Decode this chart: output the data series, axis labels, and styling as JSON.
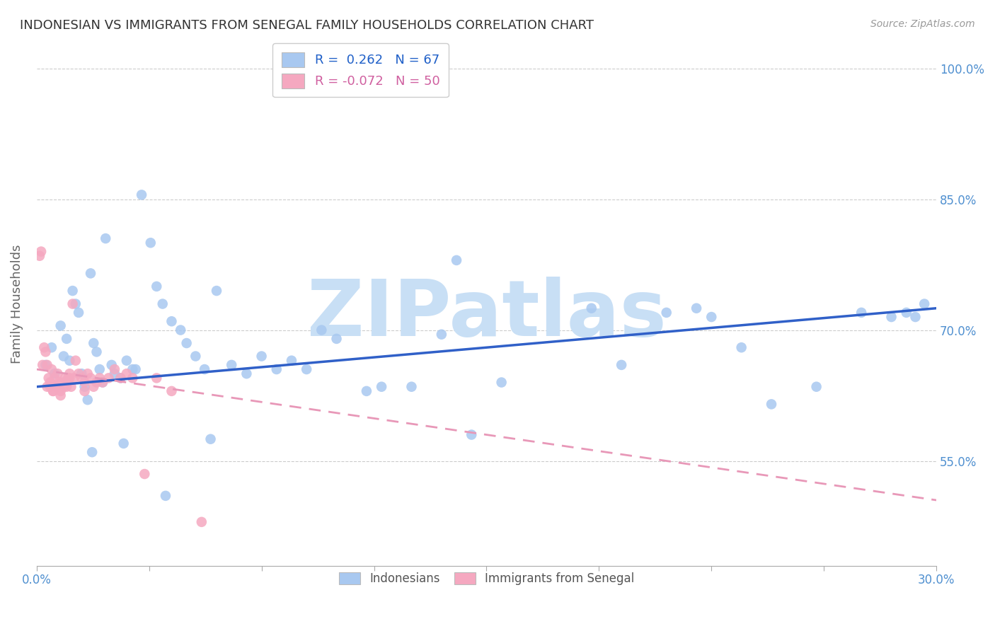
{
  "title": "INDONESIAN VS IMMIGRANTS FROM SENEGAL FAMILY HOUSEHOLDS CORRELATION CHART",
  "source": "Source: ZipAtlas.com",
  "ylabel": "Family Households",
  "xlim": [
    0.0,
    30.0
  ],
  "ylim": [
    43.0,
    103.0
  ],
  "yticks": [
    55.0,
    70.0,
    85.0,
    100.0
  ],
  "xticks": [
    0.0,
    3.75,
    7.5,
    11.25,
    15.0,
    18.75,
    22.5,
    26.25,
    30.0
  ],
  "blue_R": 0.262,
  "blue_N": 67,
  "pink_R": -0.072,
  "pink_N": 50,
  "blue_color": "#A8C8F0",
  "pink_color": "#F5A8C0",
  "blue_line_color": "#3060C8",
  "pink_line_color": "#E898B8",
  "watermark": "ZIPatlas",
  "watermark_color": "#C8DFF5",
  "legend_label_blue": "Indonesians",
  "legend_label_pink": "Immigrants from Senegal",
  "blue_trend_x0": 0.0,
  "blue_trend_y0": 63.5,
  "blue_trend_x1": 30.0,
  "blue_trend_y1": 72.5,
  "pink_trend_x0": 0.0,
  "pink_trend_y0": 65.5,
  "pink_trend_x1": 30.0,
  "pink_trend_y1": 50.5,
  "blue_scatter_x": [
    0.3,
    0.5,
    0.6,
    0.8,
    0.9,
    1.0,
    1.1,
    1.2,
    1.3,
    1.4,
    1.5,
    1.6,
    1.7,
    1.8,
    1.9,
    2.0,
    2.1,
    2.2,
    2.3,
    2.5,
    2.6,
    2.8,
    3.0,
    3.2,
    3.5,
    3.8,
    4.0,
    4.2,
    4.5,
    4.8,
    5.0,
    5.3,
    5.6,
    6.0,
    6.5,
    7.0,
    7.5,
    8.0,
    8.5,
    9.0,
    9.5,
    10.0,
    11.0,
    11.5,
    12.5,
    13.5,
    14.5,
    15.5,
    18.5,
    19.5,
    21.0,
    22.0,
    22.5,
    23.5,
    24.5,
    26.0,
    27.5,
    28.5,
    29.0,
    29.3,
    29.6,
    14.0,
    5.8,
    3.3,
    2.9,
    1.85,
    4.3
  ],
  "blue_scatter_y": [
    66.0,
    68.0,
    65.0,
    70.5,
    67.0,
    69.0,
    66.5,
    74.5,
    73.0,
    72.0,
    65.0,
    63.5,
    62.0,
    76.5,
    68.5,
    67.5,
    65.5,
    64.0,
    80.5,
    66.0,
    65.0,
    64.5,
    66.5,
    65.5,
    85.5,
    80.0,
    75.0,
    73.0,
    71.0,
    70.0,
    68.5,
    67.0,
    65.5,
    74.5,
    66.0,
    65.0,
    67.0,
    65.5,
    66.5,
    65.5,
    70.0,
    69.0,
    63.0,
    63.5,
    63.5,
    69.5,
    58.0,
    64.0,
    72.5,
    66.0,
    72.0,
    72.5,
    71.5,
    68.0,
    61.5,
    63.5,
    72.0,
    71.5,
    72.0,
    71.5,
    73.0,
    78.0,
    57.5,
    65.5,
    57.0,
    56.0,
    51.0
  ],
  "pink_scatter_x": [
    0.1,
    0.15,
    0.2,
    0.25,
    0.3,
    0.35,
    0.4,
    0.45,
    0.5,
    0.55,
    0.6,
    0.65,
    0.7,
    0.75,
    0.8,
    0.85,
    0.9,
    0.95,
    1.0,
    1.05,
    1.1,
    1.15,
    1.2,
    1.3,
    1.4,
    1.5,
    1.6,
    1.7,
    1.8,
    1.9,
    2.0,
    2.1,
    2.2,
    2.4,
    2.6,
    2.8,
    3.0,
    3.2,
    3.6,
    4.0,
    4.5,
    1.25,
    0.65,
    0.55,
    0.45,
    0.35,
    0.8,
    1.6,
    1.1,
    5.5
  ],
  "pink_scatter_y": [
    78.5,
    79.0,
    66.0,
    68.0,
    67.5,
    66.0,
    64.5,
    63.5,
    65.5,
    63.0,
    64.5,
    63.5,
    65.0,
    64.0,
    63.0,
    64.0,
    63.5,
    64.5,
    63.5,
    64.5,
    65.0,
    63.5,
    73.0,
    66.5,
    65.0,
    64.5,
    64.0,
    65.0,
    64.5,
    63.5,
    64.0,
    64.5,
    64.0,
    64.5,
    65.5,
    64.5,
    65.0,
    64.5,
    53.5,
    64.5,
    63.0,
    64.5,
    63.5,
    63.0,
    64.0,
    63.5,
    62.5,
    63.0,
    64.5,
    48.0
  ]
}
